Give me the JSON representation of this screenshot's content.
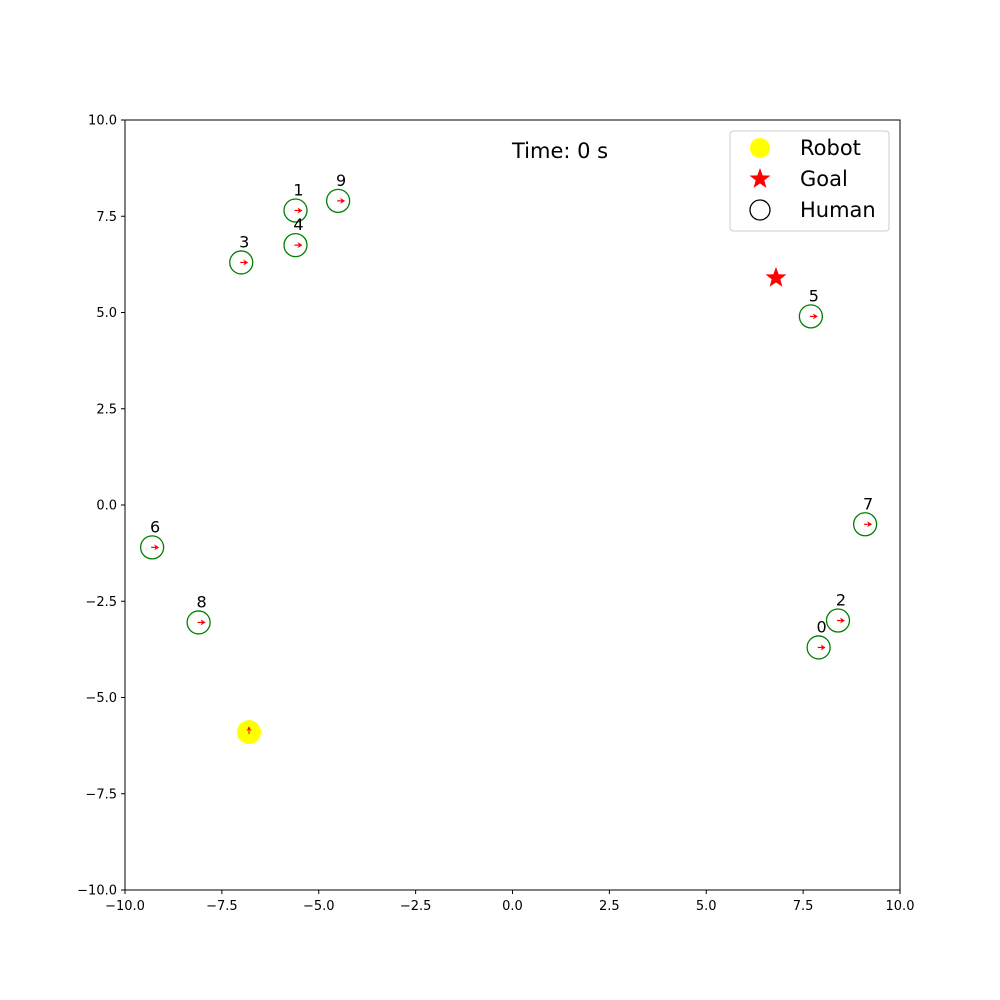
{
  "chart_data": {
    "type": "scatter",
    "title": "",
    "xlabel": "",
    "ylabel": "",
    "xlim": [
      -10,
      10
    ],
    "ylim": [
      -10,
      10
    ],
    "grid": false,
    "x_ticks": [
      -10,
      -7.5,
      -5,
      -2.5,
      0,
      2.5,
      5,
      7.5,
      10
    ],
    "y_ticks": [
      -10,
      -7.5,
      -5,
      -2.5,
      0,
      2.5,
      5,
      7.5,
      10
    ],
    "x_tick_labels": [
      "−10.0",
      "−7.5",
      "−5.0",
      "−2.5",
      "0.0",
      "2.5",
      "5.0",
      "7.5",
      "10.0"
    ],
    "y_tick_labels": [
      "−10.0",
      "−7.5",
      "−5.0",
      "−2.5",
      "0.0",
      "2.5",
      "5.0",
      "7.5",
      "10.0"
    ],
    "time_text": "Time: 0 s",
    "legend": {
      "placement": "top-right",
      "entries": [
        {
          "label": "Robot",
          "marker": "filled-circle",
          "color": "#ffff00"
        },
        {
          "label": "Goal",
          "marker": "star",
          "color": "#ff0000"
        },
        {
          "label": "Human",
          "marker": "open-circle",
          "color": "#000000"
        }
      ]
    },
    "robot": {
      "x": -6.8,
      "y": -5.9,
      "heading": "up",
      "color": "#ffff00"
    },
    "goal": {
      "x": 6.8,
      "y": 5.9,
      "color": "#ff0000"
    },
    "humans": [
      {
        "label": "0",
        "x": 7.9,
        "y": -3.7
      },
      {
        "label": "1",
        "x": -5.6,
        "y": 7.65
      },
      {
        "label": "2",
        "x": 8.4,
        "y": -3.0
      },
      {
        "label": "3",
        "x": -7.0,
        "y": 6.3
      },
      {
        "label": "4",
        "x": -5.6,
        "y": 6.75
      },
      {
        "label": "5",
        "x": 7.7,
        "y": 4.9
      },
      {
        "label": "6",
        "x": -9.3,
        "y": -1.1
      },
      {
        "label": "7",
        "x": 9.1,
        "y": -0.5
      },
      {
        "label": "8",
        "x": -8.1,
        "y": -3.05
      },
      {
        "label": "9",
        "x": -4.5,
        "y": 7.9
      }
    ],
    "human_color": "#008000",
    "heading_arrow_color": "#ff0000"
  }
}
